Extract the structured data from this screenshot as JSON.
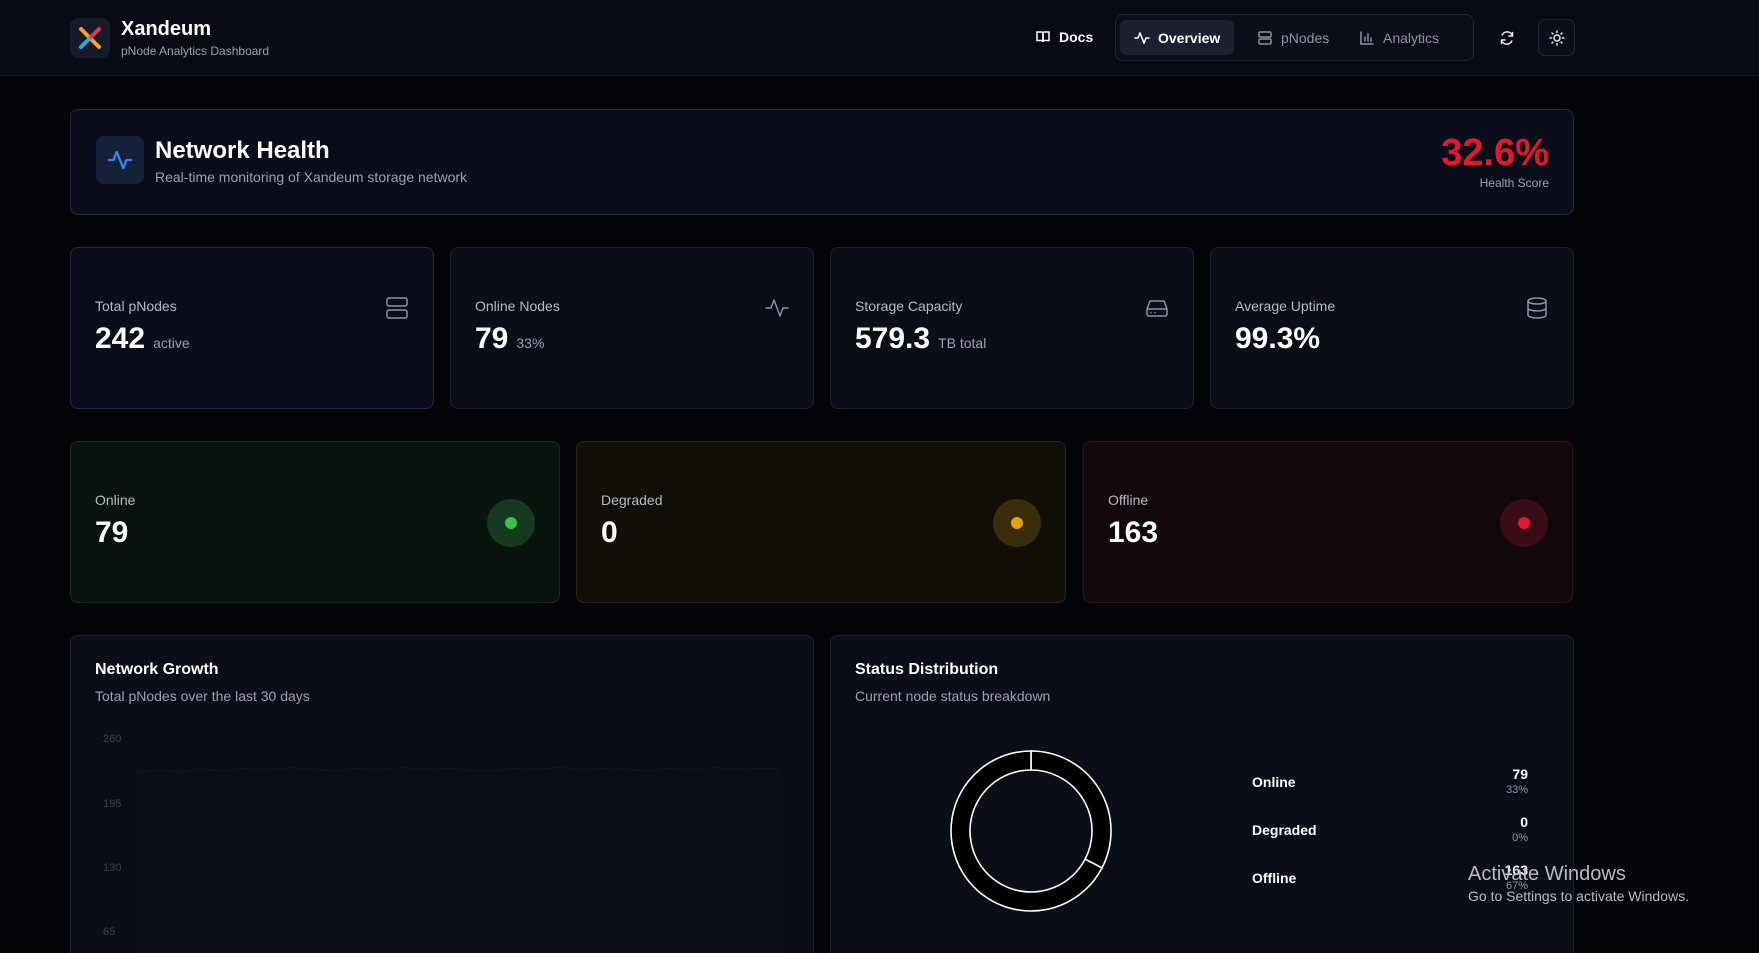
{
  "brand": {
    "title": "Xandeum",
    "subtitle": "pNode Analytics Dashboard"
  },
  "nav": {
    "docs": "Docs",
    "items": [
      {
        "label": "Overview",
        "icon": "activity-icon",
        "active": true
      },
      {
        "label": "pNodes",
        "icon": "server-icon",
        "active": false
      },
      {
        "label": "Analytics",
        "icon": "bar-chart-icon",
        "active": false
      }
    ],
    "refresh_icon": "refresh-icon",
    "theme_icon": "sun-icon"
  },
  "health": {
    "title": "Network Health",
    "subtitle": "Real-time monitoring of Xandeum storage network",
    "score": "32.6%",
    "score_label": "Health Score",
    "score_color": "#e5172f"
  },
  "stats": [
    {
      "label": "Total pNodes",
      "value": "242",
      "suffix": "active",
      "icon": "server-icon"
    },
    {
      "label": "Online Nodes",
      "value": "79",
      "suffix": "33%",
      "icon": "activity-icon"
    },
    {
      "label": "Storage Capacity",
      "value": "579.3",
      "suffix": "TB total",
      "icon": "hard-drive-icon"
    },
    {
      "label": "Average Uptime",
      "value": "99.3%",
      "suffix": "",
      "icon": "database-icon"
    }
  ],
  "status": [
    {
      "label": "Online",
      "value": "79",
      "color": "#3fbf4a"
    },
    {
      "label": "Degraded",
      "value": "0",
      "color": "#e0a012"
    },
    {
      "label": "Offline",
      "value": "163",
      "color": "#e5172f"
    }
  ],
  "growth": {
    "title": "Network Growth",
    "subtitle": "Total pNodes over the last 30 days",
    "y_ticks": [
      "260",
      "195",
      "130",
      "65"
    ]
  },
  "distribution": {
    "title": "Status Distribution",
    "subtitle": "Current node status breakdown",
    "rows": [
      {
        "name": "Online",
        "count": "79",
        "pct": "33%"
      },
      {
        "name": "Degraded",
        "count": "0",
        "pct": "0%"
      },
      {
        "name": "Offline",
        "count": "163",
        "pct": "67%"
      }
    ]
  },
  "chart_data": [
    {
      "type": "area",
      "title": "Network Growth",
      "subtitle": "Total pNodes over the last 30 days",
      "yticks": [
        65,
        130,
        195,
        260
      ],
      "ylim": [
        0,
        260
      ],
      "series": [
        {
          "values": [
            236,
            240,
            238,
            241,
            239,
            242,
            240,
            243,
            241,
            239,
            242,
            240,
            243,
            241,
            242,
            240,
            239,
            242,
            241,
            243,
            240,
            242,
            241,
            239,
            242,
            240,
            243,
            241,
            242,
            242
          ]
        }
      ]
    },
    {
      "type": "pie",
      "title": "Status Distribution",
      "subtitle": "Current node status breakdown",
      "categories": [
        "Online",
        "Degraded",
        "Offline"
      ],
      "values": [
        79,
        0,
        163
      ]
    }
  ],
  "watermark": {
    "title": "Activate Windows",
    "subtitle": "Go to Settings to activate Windows."
  }
}
